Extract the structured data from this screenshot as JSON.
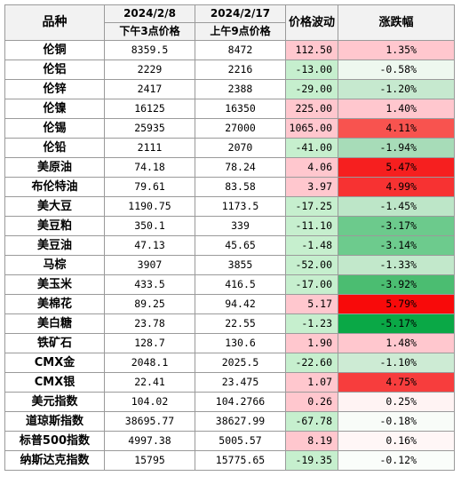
{
  "header": {
    "name": "品种",
    "date1": "2024/2/8",
    "time1": "下午3点价格",
    "date2": "2024/2/17",
    "time2": "上午9点价格",
    "change": "价格波动",
    "pct": "涨跌幅"
  },
  "rows": [
    {
      "name": "伦铜",
      "p1": "8359.5",
      "p2": "8472",
      "chg": "112.50",
      "pct": "1.35%",
      "chg_bg": "#ffc7ce",
      "pct_bg": "#ffc7ce"
    },
    {
      "name": "伦铝",
      "p1": "2229",
      "p2": "2216",
      "chg": "-13.00",
      "pct": "-0.58%",
      "chg_bg": "#c6efce",
      "pct_bg": "#eef8ef"
    },
    {
      "name": "伦锌",
      "p1": "2417",
      "p2": "2388",
      "chg": "-29.00",
      "pct": "-1.20%",
      "chg_bg": "#c6efce",
      "pct_bg": "#c6e9cf"
    },
    {
      "name": "伦镍",
      "p1": "16125",
      "p2": "16350",
      "chg": "225.00",
      "pct": "1.40%",
      "chg_bg": "#ffc7ce",
      "pct_bg": "#ffc7ce"
    },
    {
      "name": "伦锡",
      "p1": "25935",
      "p2": "27000",
      "chg": "1065.00",
      "pct": "4.11%",
      "chg_bg": "#ffc7ce",
      "pct_bg": "#f8534f"
    },
    {
      "name": "伦铅",
      "p1": "2111",
      "p2": "2070",
      "chg": "-41.00",
      "pct": "-1.94%",
      "chg_bg": "#c6efce",
      "pct_bg": "#a7dcb8"
    },
    {
      "name": "美原油",
      "p1": "74.18",
      "p2": "78.24",
      "chg": "4.06",
      "pct": "5.47%",
      "chg_bg": "#ffc7ce",
      "pct_bg": "#f61f1f"
    },
    {
      "name": "布伦特油",
      "p1": "79.61",
      "p2": "83.58",
      "chg": "3.97",
      "pct": "4.99%",
      "chg_bg": "#ffc7ce",
      "pct_bg": "#f73232"
    },
    {
      "name": "美大豆",
      "p1": "1190.75",
      "p2": "1173.5",
      "chg": "-17.25",
      "pct": "-1.45%",
      "chg_bg": "#c6efce",
      "pct_bg": "#bde6c8"
    },
    {
      "name": "美豆粕",
      "p1": "350.1",
      "p2": "339",
      "chg": "-11.10",
      "pct": "-3.17%",
      "chg_bg": "#c6efce",
      "pct_bg": "#6cca8c"
    },
    {
      "name": "美豆油",
      "p1": "47.13",
      "p2": "45.65",
      "chg": "-1.48",
      "pct": "-3.14%",
      "chg_bg": "#c6efce",
      "pct_bg": "#6dcb8d"
    },
    {
      "name": "马棕",
      "p1": "3907",
      "p2": "3855",
      "chg": "-52.00",
      "pct": "-1.33%",
      "chg_bg": "#c6efce",
      "pct_bg": "#c2e8cb"
    },
    {
      "name": "美玉米",
      "p1": "433.5",
      "p2": "416.5",
      "chg": "-17.00",
      "pct": "-3.92%",
      "chg_bg": "#c6efce",
      "pct_bg": "#4bbd71"
    },
    {
      "name": "美棉花",
      "p1": "89.25",
      "p2": "94.42",
      "chg": "5.17",
      "pct": "5.79%",
      "chg_bg": "#ffc7ce",
      "pct_bg": "#f80a0a"
    },
    {
      "name": "美白糖",
      "p1": "23.78",
      "p2": "22.55",
      "chg": "-1.23",
      "pct": "-5.17%",
      "chg_bg": "#c6efce",
      "pct_bg": "#0aa846"
    },
    {
      "name": "铁矿石",
      "p1": "128.7",
      "p2": "130.6",
      "chg": "1.90",
      "pct": "1.48%",
      "chg_bg": "#ffc7ce",
      "pct_bg": "#ffc7ce"
    },
    {
      "name": "CMX金",
      "p1": "2048.1",
      "p2": "2025.5",
      "chg": "-22.60",
      "pct": "-1.10%",
      "chg_bg": "#c6efce",
      "pct_bg": "#cdebd4"
    },
    {
      "name": "CMX银",
      "p1": "22.41",
      "p2": "23.475",
      "chg": "1.07",
      "pct": "4.75%",
      "chg_bg": "#ffc7ce",
      "pct_bg": "#f73d3d"
    },
    {
      "name": "美元指数",
      "p1": "104.02",
      "p2": "104.2766",
      "chg": "0.26",
      "pct": "0.25%",
      "chg_bg": "#ffc7ce",
      "pct_bg": "#fff3f3"
    },
    {
      "name": "道琼斯指数",
      "p1": "38695.77",
      "p2": "38627.99",
      "chg": "-67.78",
      "pct": "-0.18%",
      "chg_bg": "#c6efce",
      "pct_bg": "#f8fcf8"
    },
    {
      "name": "标普500指数",
      "p1": "4997.38",
      "p2": "5005.57",
      "chg": "8.19",
      "pct": "0.16%",
      "chg_bg": "#ffc7ce",
      "pct_bg": "#fff6f6"
    },
    {
      "name": "纳斯达克指数",
      "p1": "15795",
      "p2": "15775.65",
      "chg": "-19.35",
      "pct": "-0.12%",
      "chg_bg": "#c6efce",
      "pct_bg": "#fafdfa"
    }
  ]
}
